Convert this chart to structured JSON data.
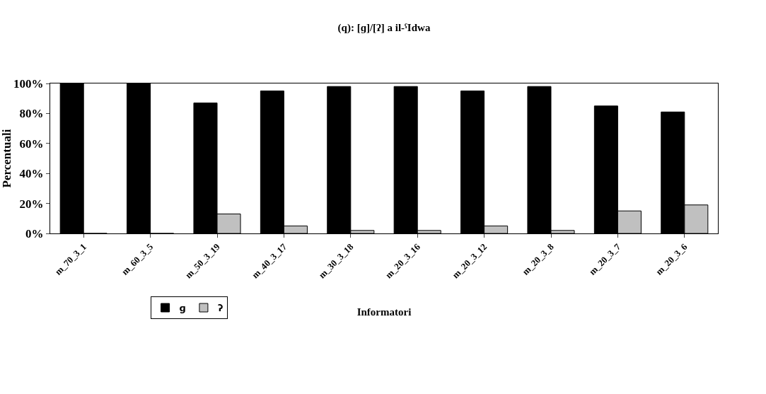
{
  "chart_data": {
    "type": "bar",
    "title": "(q): [ɡ]/[ʔ] a il-ˁIdwa",
    "xlabel": "Informatori",
    "ylabel": "Percentuali",
    "categories": [
      "m_70_3_1",
      "m_60_3_5",
      "m_50_3_19",
      "m_40_3_17",
      "m_30_3_18",
      "m_20_3_16",
      "m_20_3_12",
      "m_20_3_8",
      "m_20_3_7",
      "m_20_3_6"
    ],
    "series": [
      {
        "name": "ɡ",
        "color": "#000000",
        "values": [
          100,
          100,
          87,
          95,
          98,
          98,
          95,
          98,
          85,
          81
        ]
      },
      {
        "name": "ʔ",
        "color": "#c0c0c0",
        "values": [
          0,
          0,
          13,
          5,
          2,
          2,
          5,
          2,
          15,
          19
        ]
      }
    ],
    "ylim": [
      0,
      100
    ],
    "yticks": [
      {
        "value": 0,
        "label": "0%"
      },
      {
        "value": 20,
        "label": "20%"
      },
      {
        "value": 40,
        "label": "40%"
      },
      {
        "value": 60,
        "label": "60%"
      },
      {
        "value": 80,
        "label": "80%"
      },
      {
        "value": 100,
        "label": "100%"
      }
    ],
    "grid": false,
    "legend": "bottom left"
  }
}
